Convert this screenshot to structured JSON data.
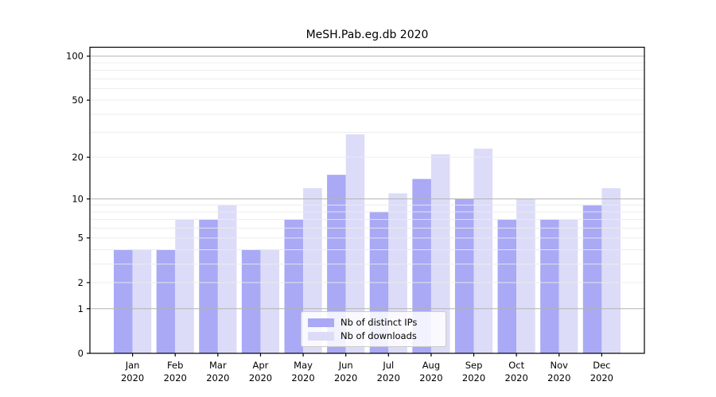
{
  "figure": {
    "title": "MeSH.Pab.eg.db 2020"
  },
  "chart_data": {
    "type": "bar",
    "title": "MeSH.Pab.eg.db 2020",
    "categories": [
      "Jan 2020",
      "Feb 2020",
      "Mar 2020",
      "Apr 2020",
      "May 2020",
      "Jun 2020",
      "Jul 2020",
      "Aug 2020",
      "Sep 2020",
      "Oct 2020",
      "Nov 2020",
      "Dec 2020"
    ],
    "series": [
      {
        "name": "Nb of distinct IPs",
        "color": "#a9a9f5",
        "values": [
          4,
          4,
          7,
          4,
          7,
          15,
          8,
          14,
          10,
          7,
          7,
          9
        ]
      },
      {
        "name": "Nb of downloads",
        "color": "#dcdcf8",
        "values": [
          4,
          7,
          9,
          4,
          12,
          29,
          11,
          21,
          23,
          10,
          7,
          12
        ]
      }
    ],
    "xlabel": "",
    "ylabel": "",
    "yscale": "log1p",
    "ylim": [
      0,
      115
    ],
    "ytick_labels": [
      "0",
      "1",
      "2",
      "5",
      "10",
      "20",
      "50",
      "100"
    ],
    "ytick_values": [
      0,
      1,
      2,
      5,
      10,
      20,
      50,
      100
    ],
    "grid_major": [
      1,
      10,
      100
    ],
    "grid_minor": [
      2,
      3,
      4,
      5,
      6,
      7,
      8,
      9,
      20,
      30,
      40,
      50,
      60,
      70,
      80,
      90
    ],
    "legend_position": "lower center",
    "colors": {
      "bar_dark": "#a9a9f5",
      "bar_light": "#dcdcf8",
      "grid_major": "#b4b4b4",
      "grid_minor": "#ebebeb",
      "axis": "#000000",
      "text": "#000000"
    }
  }
}
